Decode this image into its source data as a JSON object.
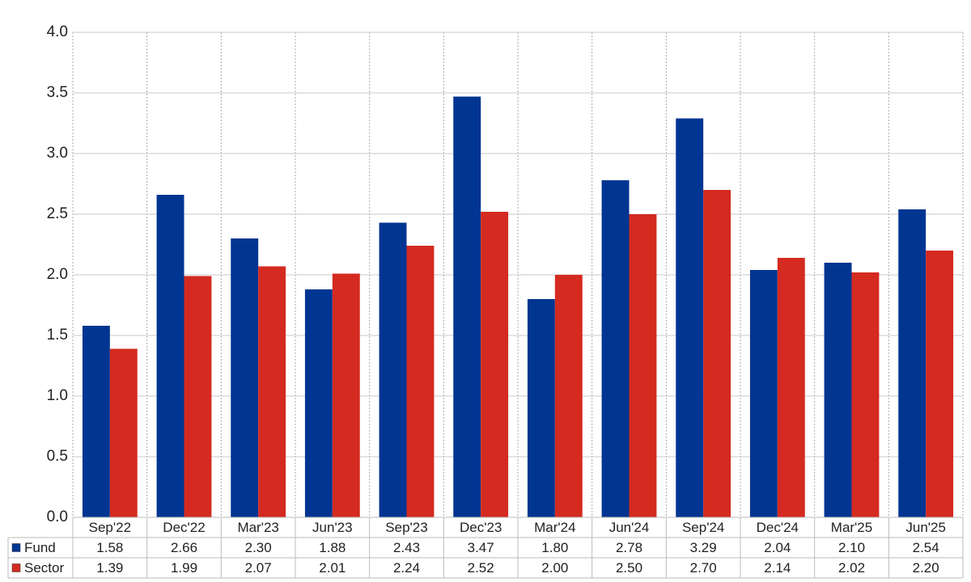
{
  "chart_data": {
    "type": "bar",
    "categories": [
      "Sep'22",
      "Dec'22",
      "Mar'23",
      "Jun'23",
      "Sep'23",
      "Dec'23",
      "Mar'24",
      "Jun'24",
      "Sep'24",
      "Dec'24",
      "Mar'25",
      "Jun'25"
    ],
    "series": [
      {
        "name": "Fund",
        "color": "#003592",
        "values": [
          1.58,
          2.66,
          2.3,
          1.88,
          2.43,
          3.47,
          1.8,
          2.78,
          3.29,
          2.04,
          2.1,
          2.54
        ],
        "value_labels": [
          "1.58",
          "2.66",
          "2.30",
          "1.88",
          "2.43",
          "3.47",
          "1.80",
          "2.78",
          "3.29",
          "2.04",
          "2.10",
          "2.54"
        ]
      },
      {
        "name": "Sector",
        "color": "#d42a20",
        "values": [
          1.39,
          1.99,
          2.07,
          2.01,
          2.24,
          2.52,
          2.0,
          2.5,
          2.7,
          2.14,
          2.02,
          2.2
        ],
        "value_labels": [
          "1.39",
          "1.99",
          "2.07",
          "2.01",
          "2.24",
          "2.52",
          "2.00",
          "2.50",
          "2.70",
          "2.14",
          "2.02",
          "2.20"
        ]
      }
    ],
    "ylim": [
      0,
      4
    ],
    "yticks": [
      {
        "value": 0,
        "label": "0.0"
      },
      {
        "value": 0.5,
        "label": "0.5"
      },
      {
        "value": 1,
        "label": "1.0"
      },
      {
        "value": 1.5,
        "label": "1.5"
      },
      {
        "value": 2,
        "label": "2.0"
      },
      {
        "value": 2.5,
        "label": "2.5"
      },
      {
        "value": 3,
        "label": "3.0"
      },
      {
        "value": 3.5,
        "label": "3.5"
      },
      {
        "value": 4,
        "label": "4.0"
      }
    ],
    "grid": true
  }
}
